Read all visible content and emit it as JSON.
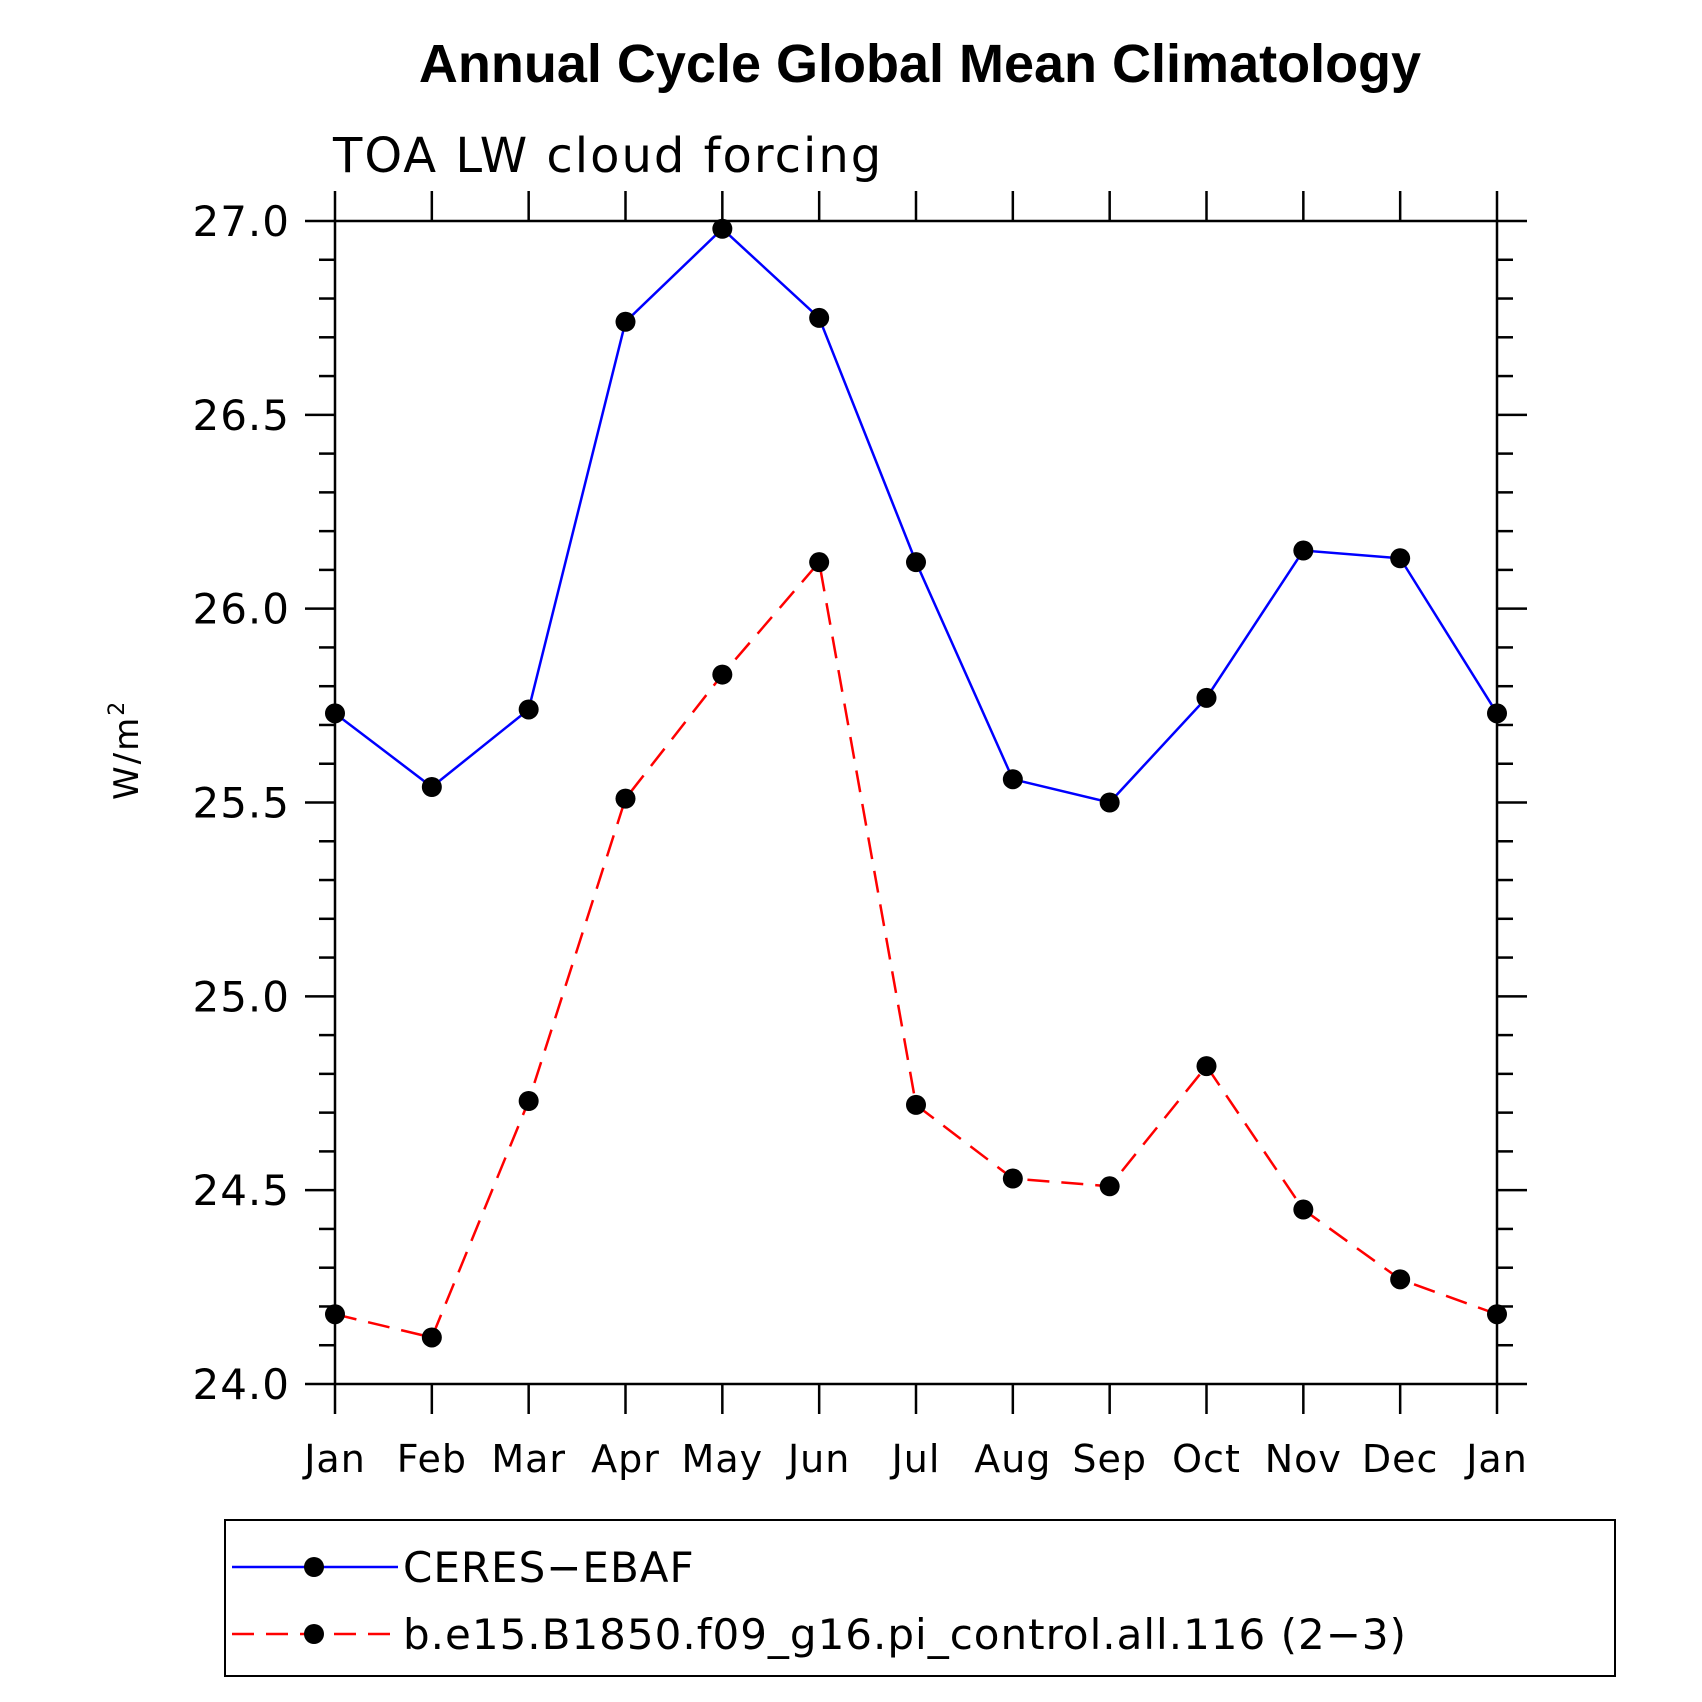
{
  "chart_data": {
    "type": "line",
    "title": "Annual Cycle Global Mean Climatology",
    "subtitle": "TOA LW cloud forcing",
    "ylabel_base": "W/m",
    "ylabel_sup": "2",
    "xlabel": "",
    "categories": [
      "Jan",
      "Feb",
      "Mar",
      "Apr",
      "May",
      "Jun",
      "Jul",
      "Aug",
      "Sep",
      "Oct",
      "Nov",
      "Dec",
      "Jan"
    ],
    "ylim": [
      24.0,
      27.0
    ],
    "yticks": [
      "24.0",
      "24.5",
      "25.0",
      "25.5",
      "26.0",
      "26.5",
      "27.0"
    ],
    "grid": false,
    "legend_position": "bottom",
    "series": [
      {
        "name": "CERES−EBAF",
        "color": "#0000ff",
        "dash": "solid",
        "marker": "filled-circle",
        "values": [
          25.73,
          25.54,
          25.74,
          26.74,
          26.98,
          26.75,
          26.12,
          25.56,
          25.5,
          25.77,
          26.15,
          26.13,
          25.73
        ]
      },
      {
        "name": "b.e15.B1850.f09_g16.pi_control.all.116 (2−3)",
        "color": "#ff0000",
        "dash": "dashed",
        "marker": "filled-circle",
        "values": [
          24.18,
          24.12,
          24.73,
          25.51,
          25.83,
          26.12,
          24.72,
          24.53,
          24.51,
          24.82,
          24.45,
          24.27,
          24.18
        ]
      }
    ]
  }
}
